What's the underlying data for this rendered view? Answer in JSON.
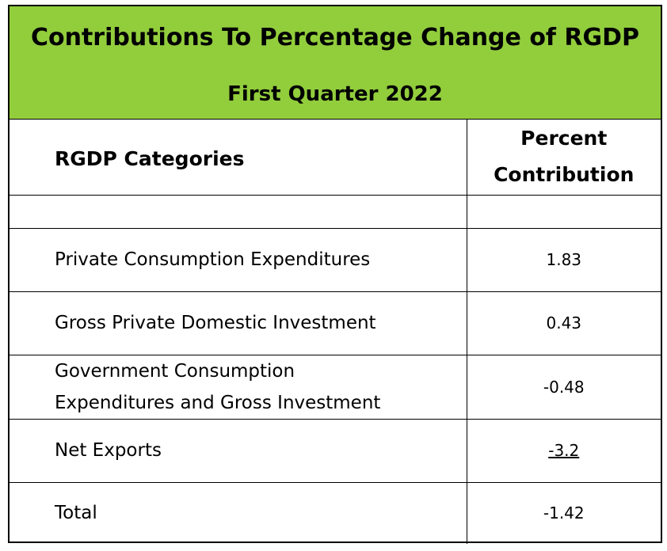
{
  "header": {
    "title": "Contributions To Percentage Change of RGDP",
    "subtitle": "First Quarter 2022"
  },
  "table": {
    "col_category": "RGDP Categories",
    "col_value_line1": "Percent",
    "col_value_line2": "Contribution",
    "rows": [
      {
        "category": "Private Consumption Expenditures",
        "value": "1.83"
      },
      {
        "category": "Gross Private Domestic Investment",
        "value": "0.43"
      },
      {
        "category_line1": "Government Consumption",
        "category_line2": "Expenditures and Gross Investment",
        "value": "-0.48"
      },
      {
        "category": "Net Exports",
        "value": "-3.2"
      },
      {
        "category": "Total",
        "value": "-1.42"
      }
    ]
  },
  "colors": {
    "banner": "#92cd3c",
    "border": "#000000"
  }
}
